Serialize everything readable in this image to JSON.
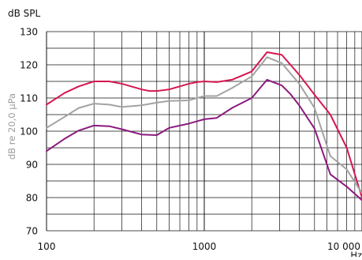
{
  "chart_data": {
    "type": "line",
    "title": "",
    "ylabel_top": "dB SPL",
    "ylabel_side": "dB re 20,0 µPa",
    "xlabel": "Hz",
    "x_scale": "log",
    "xlim": [
      100,
      10000
    ],
    "ylim": [
      70,
      130
    ],
    "grid": true,
    "x_tick_labels": [
      {
        "value": 100,
        "label": "100"
      },
      {
        "value": 1000,
        "label": "1000"
      },
      {
        "value": 10000,
        "label": "10 000"
      }
    ],
    "y_ticks": [
      70,
      80,
      90,
      100,
      110,
      120,
      130
    ],
    "colors": {
      "upper": "#d6164f",
      "middle": "#a3a3a3",
      "lower": "#8b1a7e",
      "grid": "#111111",
      "text": "#111111",
      "side_label": "#9b9b9b"
    },
    "series": [
      {
        "key": "upper",
        "x": [
          100,
          130,
          160,
          200,
          250,
          300,
          400,
          450,
          500,
          600,
          700,
          800,
          900,
          1000,
          1200,
          1500,
          2000,
          2500,
          3100,
          4000,
          5000,
          6300,
          8000,
          10000
        ],
        "values": [
          108,
          111.5,
          113.5,
          115,
          115,
          114.3,
          112.6,
          112.1,
          112.1,
          112.6,
          113.5,
          114.3,
          114.8,
          115,
          114.8,
          115.5,
          118,
          123.8,
          123,
          117,
          111,
          105,
          95,
          80
        ]
      },
      {
        "key": "middle",
        "x": [
          100,
          130,
          160,
          200,
          250,
          300,
          400,
          500,
          600,
          800,
          1000,
          1200,
          1500,
          2000,
          2500,
          3100,
          4000,
          5000,
          6300,
          8000,
          10000
        ],
        "values": [
          101,
          104.3,
          107,
          108.3,
          108,
          107.3,
          107.8,
          108.6,
          109.1,
          109.3,
          110.6,
          110.6,
          113,
          116.5,
          122.3,
          120.5,
          114.3,
          107,
          92.5,
          88.5,
          81.3
        ]
      },
      {
        "key": "lower",
        "x": [
          100,
          130,
          160,
          200,
          250,
          300,
          400,
          500,
          600,
          800,
          1000,
          1200,
          1500,
          2000,
          2500,
          3100,
          3500,
          4000,
          5000,
          6300,
          8000,
          10000
        ],
        "values": [
          94,
          97.7,
          100.2,
          101.7,
          101.5,
          100.6,
          99,
          98.8,
          101,
          102.3,
          103.6,
          104,
          107,
          110,
          115.5,
          113.8,
          111.3,
          107.8,
          100.8,
          87,
          83.3,
          79.2
        ]
      }
    ]
  }
}
